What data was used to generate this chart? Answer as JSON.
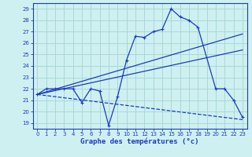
{
  "background_color": "#cff0f0",
  "grid_color": "#a8d8d8",
  "line_color": "#1a3bbf",
  "xlabel": "Graphe des températures (°c)",
  "xlim": [
    -0.5,
    23.5
  ],
  "ylim": [
    18.5,
    29.5
  ],
  "yticks": [
    19,
    20,
    21,
    22,
    23,
    24,
    25,
    26,
    27,
    28,
    29
  ],
  "xticks": [
    0,
    1,
    2,
    3,
    4,
    5,
    6,
    7,
    8,
    9,
    10,
    11,
    12,
    13,
    14,
    15,
    16,
    17,
    18,
    19,
    20,
    21,
    22,
    23
  ],
  "line1_x": [
    0,
    1,
    2,
    3,
    4,
    5,
    6,
    7,
    8,
    9,
    10,
    11,
    12,
    13,
    14,
    15,
    16,
    17,
    18,
    20,
    21,
    22,
    23
  ],
  "line1_y": [
    21.5,
    22.0,
    22.0,
    22.0,
    22.0,
    20.8,
    22.0,
    21.8,
    18.8,
    21.3,
    24.5,
    26.6,
    26.5,
    27.0,
    27.2,
    29.0,
    28.3,
    28.0,
    27.4,
    22.0,
    22.0,
    21.0,
    19.5
  ],
  "line2_x": [
    0,
    23
  ],
  "line2_y": [
    21.5,
    26.8
  ],
  "line3_x": [
    0,
    23
  ],
  "line3_y": [
    21.5,
    25.4
  ],
  "line4_x": [
    0,
    23
  ],
  "line4_y": [
    21.5,
    19.3
  ]
}
